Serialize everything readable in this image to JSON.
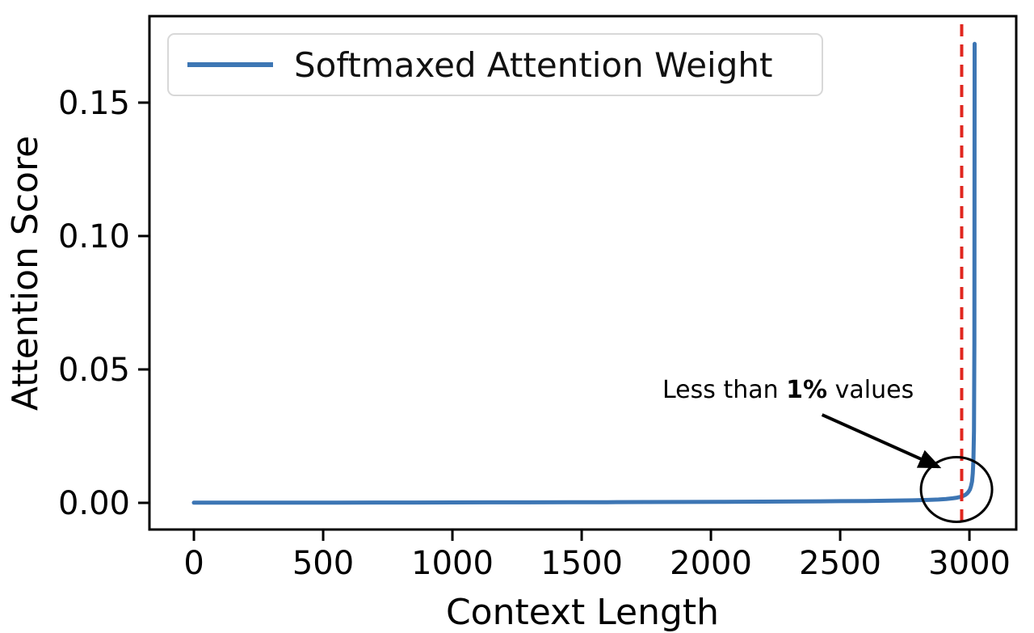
{
  "chart_data": {
    "type": "line",
    "title": "",
    "xlabel": "Context Length",
    "ylabel": "Attention Score",
    "xlim": [
      -172,
      3181
    ],
    "ylim": [
      -0.01,
      0.1824
    ],
    "xticks": [
      0,
      500,
      1000,
      1500,
      2000,
      2500,
      3000
    ],
    "yticks": [
      0,
      0.05,
      0.1,
      0.15
    ],
    "ytick_labels": [
      "0.00",
      "0.05",
      "0.10",
      "0.15"
    ],
    "grid": false,
    "legend": {
      "position": "upper left",
      "label": "Softmaxed Attention Weight"
    },
    "series": [
      {
        "name": "Softmaxed Attention Weight",
        "color": "#3d76b4",
        "x": [
          0,
          100,
          250,
          400,
          550,
          700,
          850,
          1000,
          1150,
          1300,
          1450,
          1600,
          1750,
          1900,
          2050,
          2200,
          2350,
          2500,
          2600,
          2700,
          2780,
          2840,
          2880,
          2910,
          2935,
          2952,
          2966,
          2976,
          2984,
          2991,
          2997,
          3002,
          3006,
          3010,
          3013,
          3015.5,
          3017.5,
          3019,
          3020
        ],
        "y": [
          5e-05,
          6e-05,
          7e-05,
          8e-05,
          0.0001,
          0.00011,
          0.00013,
          0.00015,
          0.00017,
          0.00019,
          0.00022,
          0.00025,
          0.00029,
          0.00033,
          0.00038,
          0.00044,
          0.00052,
          0.00062,
          0.0007,
          0.00082,
          0.00095,
          0.0011,
          0.00125,
          0.00145,
          0.0017,
          0.00195,
          0.00225,
          0.0026,
          0.003,
          0.0035,
          0.0042,
          0.005,
          0.0062,
          0.008,
          0.011,
          0.016,
          0.027,
          0.06,
          0.172
        ]
      }
    ],
    "vline": {
      "x": 2970,
      "color": "#e0271f",
      "style": "dashed"
    },
    "annotation": {
      "text": "Less than 1% values",
      "prefix": "Less than ",
      "bold": "1%",
      "suffix": " values",
      "arrow": {
        "x1": 2430,
        "y1": 0.033,
        "x2": 2880,
        "y2": 0.0135
      },
      "circle": {
        "x": 2950,
        "y": 0.005
      }
    }
  }
}
